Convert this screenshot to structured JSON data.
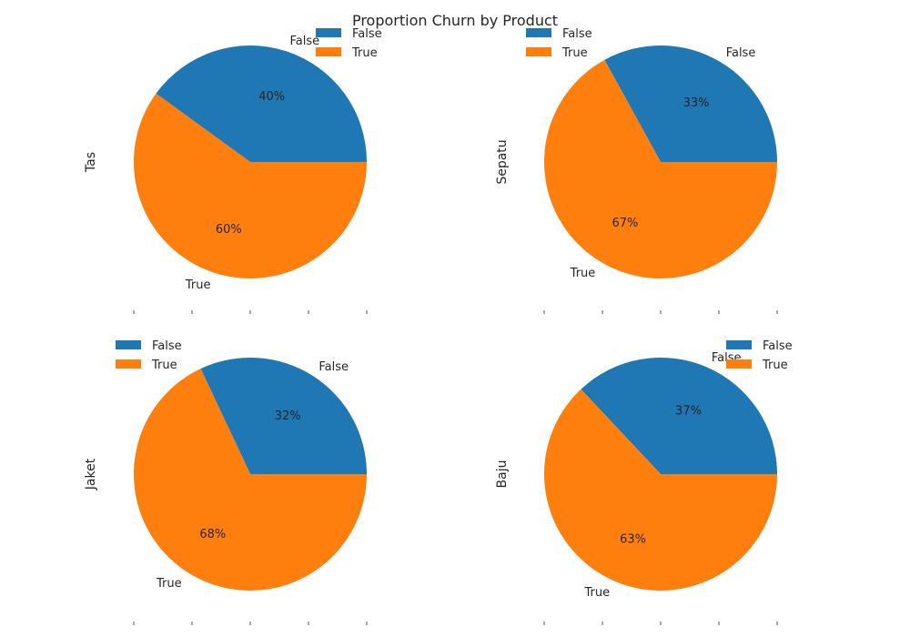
{
  "chart_data": {
    "title": "Proportion Churn by Product",
    "type": "pie",
    "legend_entries": [
      "False",
      "True"
    ],
    "colors": {
      "False": "#1f77b4",
      "True": "#ff7f0e"
    },
    "charts": [
      {
        "type": "pie",
        "ylabel": "Tas",
        "labels": [
          "False",
          "True"
        ],
        "values": [
          40,
          60
        ],
        "pct_labels": [
          "40%",
          "60%"
        ],
        "legend_placement": "top-right"
      },
      {
        "type": "pie",
        "ylabel": "Sepatu",
        "labels": [
          "False",
          "True"
        ],
        "values": [
          33,
          67
        ],
        "pct_labels": [
          "33%",
          "67%"
        ],
        "legend_placement": "top-left"
      },
      {
        "type": "pie",
        "ylabel": "Jaket",
        "labels": [
          "False",
          "True"
        ],
        "values": [
          32,
          68
        ],
        "pct_labels": [
          "32%",
          "68%"
        ],
        "legend_placement": "top-left"
      },
      {
        "type": "pie",
        "ylabel": "Baju",
        "labels": [
          "False",
          "True"
        ],
        "values": [
          37,
          63
        ],
        "pct_labels": [
          "37%",
          "63%"
        ],
        "legend_placement": "top-right"
      }
    ]
  }
}
